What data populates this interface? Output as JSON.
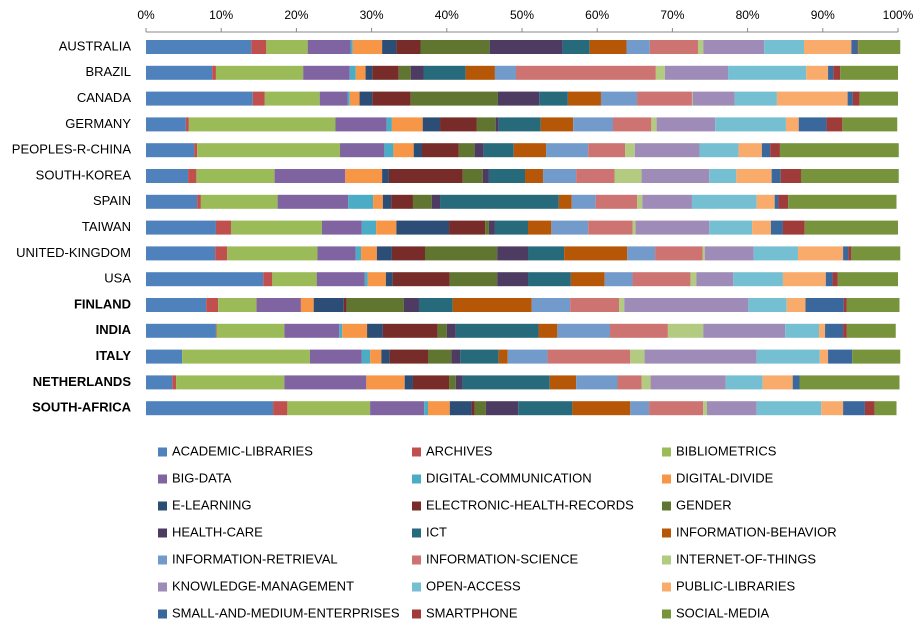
{
  "chart_data": {
    "type": "bar",
    "orientation": "horizontal",
    "stacked": true,
    "categories": [
      "AUSTRALIA",
      "BRAZIL",
      "CANADA",
      "GERMANY",
      "PEOPLES-R-CHINA",
      "SOUTH-KOREA",
      "SPAIN",
      "TAIWAN",
      "UNITED-KINGDOM",
      "USA",
      "FINLAND",
      "INDIA",
      "ITALY",
      "NETHERLANDS",
      "SOUTH-AFRICA"
    ],
    "xlim": [
      0,
      100
    ],
    "xticks": [
      {
        "value": 0,
        "label": "0%"
      },
      {
        "value": 10,
        "label": "10%"
      },
      {
        "value": 20,
        "label": "20%"
      },
      {
        "value": 30,
        "label": "30%"
      },
      {
        "value": 40,
        "label": "40%"
      },
      {
        "value": 50,
        "label": "50%"
      },
      {
        "value": 60,
        "label": "60%"
      },
      {
        "value": 70,
        "label": "70%"
      },
      {
        "value": 80,
        "label": "80%"
      },
      {
        "value": 90,
        "label": "90%"
      },
      {
        "value": 100,
        "label": "100%"
      }
    ],
    "legend": "bottom",
    "series": [
      {
        "name": "ACADEMIC-LIBRARIES",
        "color": "#4f81bd",
        "values": [
          14.0,
          8.8,
          14.2,
          5.3,
          6.4,
          5.6,
          6.8,
          9.3,
          9.2,
          15.6,
          8.0,
          9.3,
          4.8,
          3.5,
          16.9
        ]
      },
      {
        "name": "ARCHIVES",
        "color": "#c0504d",
        "values": [
          2.0,
          0.5,
          1.6,
          0.4,
          0.4,
          1.1,
          0.5,
          2.0,
          1.6,
          1.2,
          1.6,
          0.1,
          0,
          0.5,
          1.9
        ]
      },
      {
        "name": "BIBLIOMETRICS",
        "color": "#9bbb59",
        "values": [
          5.5,
          11.6,
          7.3,
          19.5,
          19.0,
          10.4,
          10.2,
          12.1,
          12.0,
          5.9,
          5.1,
          9.0,
          17.0,
          14.4,
          11.0
        ]
      },
      {
        "name": "BIG-DATA",
        "color": "#8064a2",
        "values": [
          5.7,
          6.2,
          3.7,
          6.8,
          5.9,
          9.4,
          9.4,
          5.3,
          5.1,
          6.4,
          5.9,
          7.3,
          6.9,
          10.9,
          7.2
        ]
      },
      {
        "name": "DIGITAL-COMMUNICATION",
        "color": "#4bacc6",
        "values": [
          0.3,
          0.8,
          0.3,
          0.7,
          1.2,
          0,
          3.3,
          1.9,
          0.7,
          0.4,
          0,
          0.4,
          1.1,
          0,
          0.5
        ]
      },
      {
        "name": "DIGITAL-DIVIDE",
        "color": "#f79646",
        "values": [
          3.9,
          1.3,
          1.3,
          4.1,
          2.7,
          4.9,
          1.3,
          2.7,
          2.1,
          2.4,
          1.7,
          3.3,
          1.5,
          5.1,
          2.9
        ]
      },
      {
        "name": "E-LEARNING",
        "color": "#2c4d75",
        "values": [
          1.9,
          0.9,
          1.7,
          2.3,
          1.1,
          0.9,
          1.1,
          7.0,
          2.0,
          0.9,
          4.0,
          2.1,
          1.1,
          1.1,
          2.9
        ]
      },
      {
        "name": "ELECTRONIC-HEALTH-RECORDS",
        "color": "#772c2a",
        "values": [
          3.2,
          3.5,
          5.1,
          4.9,
          4.9,
          9.8,
          2.9,
          4.8,
          4.4,
          7.6,
          0.4,
          7.3,
          5.1,
          4.8,
          0.4
        ]
      },
      {
        "name": "GENDER",
        "color": "#5f7530",
        "values": [
          9.2,
          1.6,
          11.6,
          2.5,
          2.1,
          2.7,
          2.5,
          0.5,
          9.6,
          6.3,
          7.6,
          1.2,
          3.1,
          0.9,
          1.5
        ]
      },
      {
        "name": "HEALTH-CARE",
        "color": "#4d3b62",
        "values": [
          9.7,
          1.7,
          5.5,
          0.4,
          1.2,
          0.8,
          1.1,
          0.8,
          4.1,
          4.1,
          2.0,
          1.2,
          1.2,
          0.9,
          4.3
        ]
      },
      {
        "name": "ICT",
        "color": "#276a7c",
        "values": [
          3.6,
          5.6,
          3.8,
          5.6,
          4.0,
          4.8,
          15.8,
          4.4,
          4.8,
          5.7,
          4.5,
          11.0,
          5.1,
          11.6,
          7.2
        ]
      },
      {
        "name": "INFORMATION-BEHAVIOR",
        "color": "#b65708",
        "values": [
          4.9,
          3.9,
          4.4,
          4.3,
          4.3,
          2.4,
          1.7,
          3.1,
          8.4,
          4.5,
          10.5,
          2.5,
          1.2,
          3.5,
          7.7
        ]
      },
      {
        "name": "INFORMATION-RETRIEVAL",
        "color": "#729aca",
        "values": [
          3.1,
          2.8,
          4.8,
          5.3,
          5.6,
          4.4,
          3.2,
          4.9,
          3.7,
          3.7,
          5.1,
          7.0,
          5.3,
          5.5,
          2.5
        ]
      },
      {
        "name": "INFORMATION-SCIENCE",
        "color": "#cd7371",
        "values": [
          6.4,
          18.6,
          7.3,
          5.1,
          4.9,
          5.1,
          5.5,
          5.9,
          6.3,
          7.7,
          6.5,
          7.7,
          11.0,
          3.2,
          7.2
        ]
      },
      {
        "name": "INTERNET-OF-THINGS",
        "color": "#b3cb81",
        "values": [
          0.7,
          1.2,
          0.1,
          0.7,
          1.3,
          3.6,
          0.7,
          0.4,
          0.3,
          0.8,
          0.7,
          4.7,
          1.9,
          1.2,
          0.5
        ]
      },
      {
        "name": "KNOWLEDGE-MANAGEMENT",
        "color": "#9e8bb8",
        "values": [
          8.1,
          8.4,
          5.6,
          7.8,
          8.6,
          9.0,
          6.6,
          9.8,
          6.5,
          4.9,
          16.5,
          10.9,
          14.9,
          10.0,
          6.6
        ]
      },
      {
        "name": "OPEN-ACCESS",
        "color": "#75bfd3",
        "values": [
          5.3,
          10.4,
          5.6,
          9.4,
          5.2,
          3.6,
          8.6,
          5.7,
          5.9,
          6.6,
          5.1,
          4.5,
          8.4,
          4.9,
          8.6
        ]
      },
      {
        "name": "PUBLIC-LIBRARIES",
        "color": "#f9ab6b",
        "values": [
          6.3,
          2.9,
          9.4,
          1.7,
          3.1,
          4.7,
          2.4,
          2.5,
          6.0,
          5.7,
          2.5,
          0.8,
          1.1,
          4.0,
          2.9
        ]
      },
      {
        "name": "SMALL-AND-MEDIUM-ENTERPRISES",
        "color": "#3a679c",
        "values": [
          0.8,
          0.7,
          0.7,
          3.7,
          1.1,
          1.2,
          0.5,
          1.6,
          0.7,
          0.9,
          5.1,
          2.4,
          3.2,
          0.9,
          2.9
        ]
      },
      {
        "name": "SMARTPHONE",
        "color": "#9f3b39",
        "values": [
          0.1,
          0.9,
          0.9,
          2.1,
          1.3,
          2.7,
          1.3,
          2.9,
          0.4,
          0.7,
          0.4,
          0.5,
          0,
          0,
          1.3
        ]
      },
      {
        "name": "SOCIAL-MEDIA",
        "color": "#77933c",
        "values": [
          5.6,
          7.7,
          5.1,
          7.3,
          15.8,
          13.0,
          14.4,
          12.4,
          6.5,
          8.0,
          7.0,
          6.5,
          6.4,
          13.3,
          2.9
        ]
      }
    ]
  }
}
